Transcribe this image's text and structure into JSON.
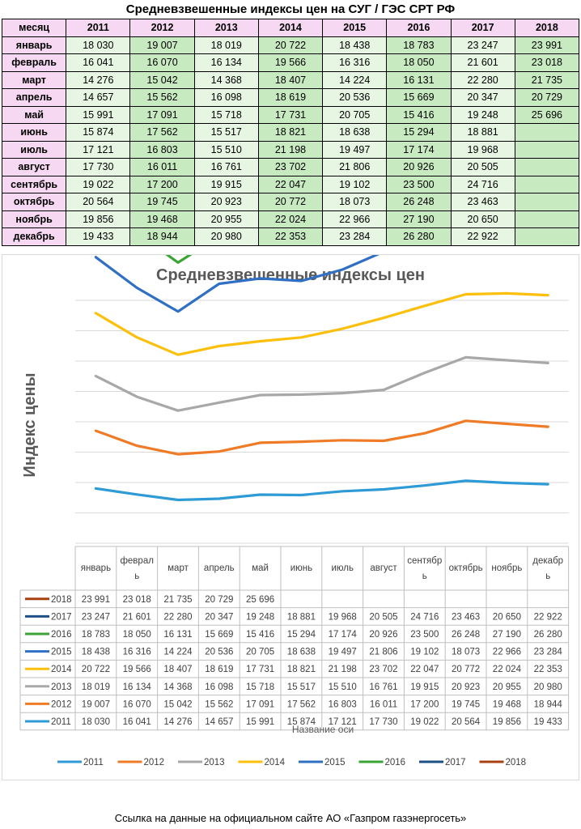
{
  "page_title": "Средневзвешенные индексы цен на СУГ / ГЭС СРТ РФ",
  "source_note": "Ссылка на данные на официальном сайте АО «Газпром газэнергосеть»",
  "colors": {
    "header_bg": "#f7d8f2",
    "cell_light": "#e6f6e2",
    "cell_dark": "#c8eac0",
    "2011": "#2e9bd6",
    "2012": "#f07b27",
    "2013": "#a8a8a8",
    "2014": "#fcc00c",
    "2015": "#2f6fc4",
    "2016": "#3aa534",
    "2017": "#1e4f86",
    "2018": "#a9400f"
  },
  "table": {
    "month_header": "месяц",
    "years": [
      "2011",
      "2012",
      "2013",
      "2014",
      "2015",
      "2016",
      "2017",
      "2018"
    ],
    "months": [
      "январь",
      "февраль",
      "март",
      "апрель",
      "май",
      "июнь",
      "июль",
      "август",
      "сентябрь",
      "октябрь",
      "ноябрь",
      "декабрь"
    ],
    "rows": [
      [
        "18 030",
        "19 007",
        "18 019",
        "20 722",
        "18 438",
        "18 783",
        "23 247",
        "23 991"
      ],
      [
        "16 041",
        "16 070",
        "16 134",
        "19 566",
        "16 316",
        "18 050",
        "21 601",
        "23 018"
      ],
      [
        "14 276",
        "15 042",
        "14 368",
        "18 407",
        "14 224",
        "16 131",
        "22 280",
        "21 735"
      ],
      [
        "14 657",
        "15 562",
        "16 098",
        "18 619",
        "20 536",
        "15 669",
        "20 347",
        "20 729"
      ],
      [
        "15 991",
        "17 091",
        "15 718",
        "17 731",
        "20 705",
        "15 416",
        "19 248",
        "25 696"
      ],
      [
        "15 874",
        "17 562",
        "15 517",
        "18 821",
        "18 638",
        "15 294",
        "18 881",
        ""
      ],
      [
        "17 121",
        "16 803",
        "15 510",
        "21 198",
        "19 497",
        "17 174",
        "19 968",
        ""
      ],
      [
        "17 730",
        "16 011",
        "16 761",
        "23 702",
        "21 806",
        "20 926",
        "20 505",
        ""
      ],
      [
        "19 022",
        "17 200",
        "19 915",
        "22 047",
        "19 102",
        "23 500",
        "24 716",
        ""
      ],
      [
        "20 564",
        "19 745",
        "20 923",
        "20 772",
        "18 073",
        "26 248",
        "23 463",
        ""
      ],
      [
        "19 856",
        "19 468",
        "20 955",
        "22 024",
        "22 966",
        "27 190",
        "20 650",
        ""
      ],
      [
        "19 433",
        "18 944",
        "20 980",
        "22 353",
        "23 284",
        "26 280",
        "22 922",
        ""
      ]
    ]
  },
  "chart_data": {
    "type": "line",
    "title": "Средневзвешенные индексы цен",
    "ylabel": "Индекс цены",
    "xlabel": "Название оси",
    "grid": true,
    "legend_position": "bottom",
    "categories": [
      "январь",
      "февраль",
      "март",
      "апрель",
      "май",
      "июнь",
      "июль",
      "август",
      "сентябрь",
      "октябрь",
      "ноябрь",
      "декабрь"
    ],
    "category_labels": [
      [
        "январь"
      ],
      [
        "феврал",
        "ь"
      ],
      [
        "март"
      ],
      [
        "апрель"
      ],
      [
        "май"
      ],
      [
        "июнь"
      ],
      [
        "июль"
      ],
      [
        "август"
      ],
      [
        "сентябр",
        "ь"
      ],
      [
        "октябрь"
      ],
      [
        "ноябрь"
      ],
      [
        "декабр",
        "ь"
      ]
    ],
    "series": [
      {
        "name": "2018",
        "values": [
          23991,
          23018,
          21735,
          20729,
          25696,
          null,
          null,
          null,
          null,
          null,
          null,
          null
        ]
      },
      {
        "name": "2017",
        "values": [
          23247,
          21601,
          22280,
          20347,
          19248,
          18881,
          19968,
          20505,
          24716,
          23463,
          20650,
          22922
        ]
      },
      {
        "name": "2016",
        "values": [
          18783,
          18050,
          16131,
          15669,
          15416,
          15294,
          17174,
          20926,
          23500,
          26248,
          27190,
          26280
        ]
      },
      {
        "name": "2015",
        "values": [
          18438,
          16316,
          14224,
          20536,
          20705,
          18638,
          19497,
          21806,
          19102,
          18073,
          22966,
          23284
        ]
      },
      {
        "name": "2014",
        "values": [
          20722,
          19566,
          18407,
          18619,
          17731,
          18821,
          21198,
          23702,
          22047,
          20772,
          22024,
          22353
        ]
      },
      {
        "name": "2013",
        "values": [
          18019,
          16134,
          14368,
          16098,
          15718,
          15517,
          15510,
          16761,
          19915,
          20923,
          20955,
          20980
        ]
      },
      {
        "name": "2012",
        "values": [
          19007,
          16070,
          15042,
          15562,
          17091,
          17562,
          16803,
          16011,
          17200,
          19745,
          19468,
          18944
        ]
      },
      {
        "name": "2011",
        "values": [
          18030,
          16041,
          14276,
          14657,
          15991,
          15874,
          17121,
          17730,
          19022,
          20564,
          19856,
          19433
        ]
      }
    ],
    "legend_order": [
      "2011",
      "2012",
      "2013",
      "2014",
      "2015",
      "2016",
      "2017",
      "2018"
    ]
  }
}
